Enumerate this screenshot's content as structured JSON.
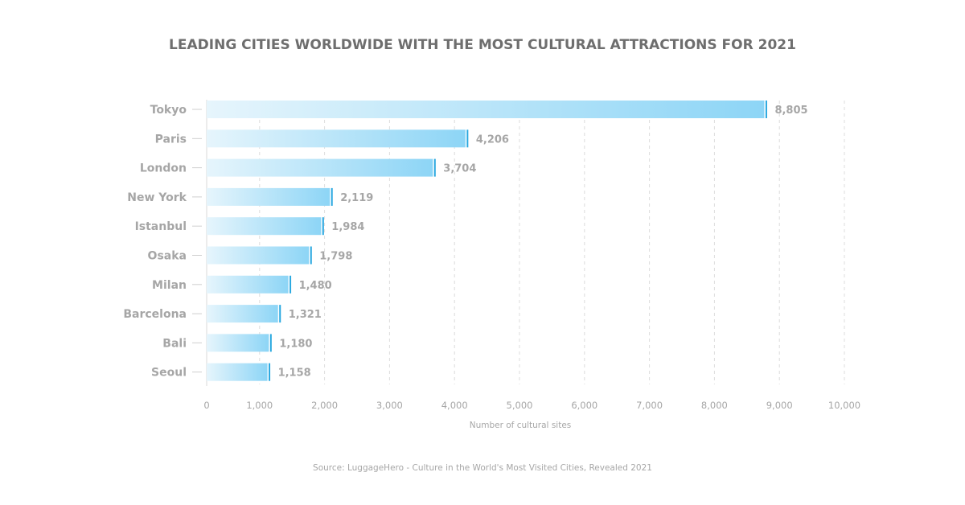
{
  "chart_data": {
    "type": "bar",
    "orientation": "horizontal",
    "title": "LEADING CITIES WORLDWIDE WITH THE MOST CULTURAL ATTRACTIONS FOR 2021",
    "xlabel": "Number of cultural sites",
    "ylabel": "",
    "categories": [
      "Tokyo",
      "Paris",
      "London",
      "New York",
      "Istanbul",
      "Osaka",
      "Milan",
      "Barcelona",
      "Bali",
      "Seoul"
    ],
    "values": [
      8805,
      4206,
      3704,
      2119,
      1984,
      1798,
      1480,
      1321,
      1180,
      1158
    ],
    "value_labels": [
      "8,805",
      "4,206",
      "3,704",
      "2,119",
      "1,984",
      "1,798",
      "1,480",
      "1,321",
      "1,180",
      "1,158"
    ],
    "xlim": [
      0,
      10000
    ],
    "xticks": [
      0,
      1000,
      2000,
      3000,
      4000,
      5000,
      6000,
      7000,
      8000,
      9000,
      10000
    ],
    "xtick_labels": [
      "0",
      "1,000",
      "2,000",
      "3,000",
      "4,000",
      "5,000",
      "6,000",
      "7,000",
      "8,000",
      "9,000",
      "10,000"
    ],
    "grid": "vertical dashed",
    "source": "Source: LuggageHero - Culture in the World's Most Visited Cities, Revealed 2021",
    "colors": {
      "bar_start": "#e6f5fc",
      "bar_end": "#8dd5f6",
      "bar_cap": "#29a8e0",
      "text": "#a6a6a6",
      "title": "#6e6e6e"
    }
  }
}
